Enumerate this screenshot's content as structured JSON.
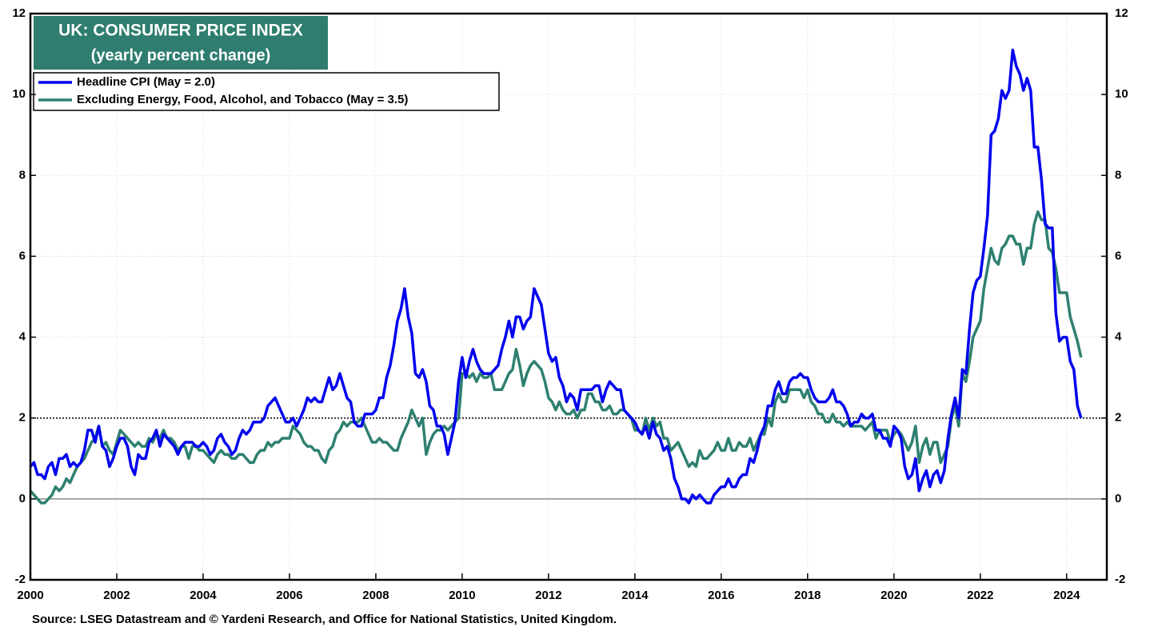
{
  "chart_data": {
    "type": "line",
    "title": "UK: CONSUMER PRICE INDEX",
    "subtitle": "(yearly percent change)",
    "source": "Source: LSEG Datastream and © Yardeni Research, and Office for National Statistics, United Kingdom.",
    "xlim": [
      2000,
      2024.93
    ],
    "xticks": [
      2000,
      2002,
      2004,
      2006,
      2008,
      2010,
      2012,
      2014,
      2016,
      2018,
      2020,
      2022,
      2024
    ],
    "ylim": [
      -2,
      12
    ],
    "yticks": [
      -2,
      0,
      2,
      4,
      6,
      8,
      10,
      12
    ],
    "y2lim": [
      -2,
      12
    ],
    "y2ticks": [
      -2,
      0,
      2,
      4,
      6,
      8,
      10,
      12
    ],
    "grid": true,
    "reference_line": 2,
    "legend": "upper-left",
    "x": [
      2000,
      2000.083,
      2000.167,
      2000.25,
      2000.333,
      2000.417,
      2000.5,
      2000.583,
      2000.667,
      2000.75,
      2000.833,
      2000.917,
      2001,
      2001.083,
      2001.167,
      2001.25,
      2001.333,
      2001.417,
      2001.5,
      2001.583,
      2001.667,
      2001.75,
      2001.833,
      2001.917,
      2002,
      2002.083,
      2002.167,
      2002.25,
      2002.333,
      2002.417,
      2002.5,
      2002.583,
      2002.667,
      2002.75,
      2002.833,
      2002.917,
      2003,
      2003.083,
      2003.167,
      2003.25,
      2003.333,
      2003.417,
      2003.5,
      2003.583,
      2003.667,
      2003.75,
      2003.833,
      2003.917,
      2004,
      2004.083,
      2004.167,
      2004.25,
      2004.333,
      2004.417,
      2004.5,
      2004.583,
      2004.667,
      2004.75,
      2004.833,
      2004.917,
      2005,
      2005.083,
      2005.167,
      2005.25,
      2005.333,
      2005.417,
      2005.5,
      2005.583,
      2005.667,
      2005.75,
      2005.833,
      2005.917,
      2006,
      2006.083,
      2006.167,
      2006.25,
      2006.333,
      2006.417,
      2006.5,
      2006.583,
      2006.667,
      2006.75,
      2006.833,
      2006.917,
      2007,
      2007.083,
      2007.167,
      2007.25,
      2007.333,
      2007.417,
      2007.5,
      2007.583,
      2007.667,
      2007.75,
      2007.833,
      2007.917,
      2008,
      2008.083,
      2008.167,
      2008.25,
      2008.333,
      2008.417,
      2008.5,
      2008.583,
      2008.667,
      2008.75,
      2008.833,
      2008.917,
      2009,
      2009.083,
      2009.167,
      2009.25,
      2009.333,
      2009.417,
      2009.5,
      2009.583,
      2009.667,
      2009.75,
      2009.833,
      2009.917,
      2010,
      2010.083,
      2010.167,
      2010.25,
      2010.333,
      2010.417,
      2010.5,
      2010.583,
      2010.667,
      2010.75,
      2010.833,
      2010.917,
      2011,
      2011.083,
      2011.167,
      2011.25,
      2011.333,
      2011.417,
      2011.5,
      2011.583,
      2011.667,
      2011.75,
      2011.833,
      2011.917,
      2012,
      2012.083,
      2012.167,
      2012.25,
      2012.333,
      2012.417,
      2012.5,
      2012.583,
      2012.667,
      2012.75,
      2012.833,
      2012.917,
      2013,
      2013.083,
      2013.167,
      2013.25,
      2013.333,
      2013.417,
      2013.5,
      2013.583,
      2013.667,
      2013.75,
      2013.833,
      2013.917,
      2014,
      2014.083,
      2014.167,
      2014.25,
      2014.333,
      2014.417,
      2014.5,
      2014.583,
      2014.667,
      2014.75,
      2014.833,
      2014.917,
      2015,
      2015.083,
      2015.167,
      2015.25,
      2015.333,
      2015.417,
      2015.5,
      2015.583,
      2015.667,
      2015.75,
      2015.833,
      2015.917,
      2016,
      2016.083,
      2016.167,
      2016.25,
      2016.333,
      2016.417,
      2016.5,
      2016.583,
      2016.667,
      2016.75,
      2016.833,
      2016.917,
      2017,
      2017.083,
      2017.167,
      2017.25,
      2017.333,
      2017.417,
      2017.5,
      2017.583,
      2017.667,
      2017.75,
      2017.833,
      2017.917,
      2018,
      2018.083,
      2018.167,
      2018.25,
      2018.333,
      2018.417,
      2018.5,
      2018.583,
      2018.667,
      2018.75,
      2018.833,
      2018.917,
      2019,
      2019.083,
      2019.167,
      2019.25,
      2019.333,
      2019.417,
      2019.5,
      2019.583,
      2019.667,
      2019.75,
      2019.833,
      2019.917,
      2020,
      2020.083,
      2020.167,
      2020.25,
      2020.333,
      2020.417,
      2020.5,
      2020.583,
      2020.667,
      2020.75,
      2020.833,
      2020.917,
      2021,
      2021.083,
      2021.167,
      2021.25,
      2021.333,
      2021.417,
      2021.5,
      2021.583,
      2021.667,
      2021.75,
      2021.833,
      2021.917,
      2022,
      2022.083,
      2022.167,
      2022.25,
      2022.333,
      2022.417,
      2022.5,
      2022.583,
      2022.667,
      2022.75,
      2022.833,
      2022.917,
      2023,
      2023.083,
      2023.167,
      2023.25,
      2023.333,
      2023.417,
      2023.5,
      2023.583,
      2023.667,
      2023.75,
      2023.833,
      2023.917,
      2024,
      2024.083,
      2024.167,
      2024.25,
      2024.333
    ],
    "series": [
      {
        "name": "Headline CPI (May = 2.0)",
        "color": "#0000ee",
        "values": [
          0.8,
          0.9,
          0.6,
          0.6,
          0.5,
          0.8,
          0.9,
          0.6,
          1.0,
          1.0,
          1.1,
          0.8,
          0.9,
          0.8,
          0.9,
          1.2,
          1.7,
          1.7,
          1.4,
          1.8,
          1.3,
          1.2,
          0.8,
          1.0,
          1.3,
          1.5,
          1.5,
          1.3,
          0.8,
          0.6,
          1.1,
          1.0,
          1.0,
          1.4,
          1.5,
          1.7,
          1.3,
          1.6,
          1.5,
          1.4,
          1.3,
          1.1,
          1.3,
          1.4,
          1.4,
          1.4,
          1.3,
          1.3,
          1.4,
          1.3,
          1.1,
          1.2,
          1.5,
          1.6,
          1.4,
          1.3,
          1.1,
          1.2,
          1.5,
          1.7,
          1.6,
          1.7,
          1.9,
          1.9,
          1.9,
          2.0,
          2.3,
          2.4,
          2.5,
          2.3,
          2.1,
          1.9,
          1.9,
          2.0,
          1.8,
          2.0,
          2.2,
          2.5,
          2.4,
          2.5,
          2.4,
          2.4,
          2.7,
          3.0,
          2.7,
          2.8,
          3.1,
          2.8,
          2.5,
          2.4,
          1.9,
          1.8,
          1.8,
          2.1,
          2.1,
          2.1,
          2.2,
          2.5,
          2.5,
          3.0,
          3.3,
          3.8,
          4.4,
          4.7,
          5.2,
          4.5,
          4.1,
          3.1,
          3.0,
          3.2,
          2.9,
          2.3,
          2.2,
          1.8,
          1.8,
          1.6,
          1.1,
          1.5,
          1.9,
          2.9,
          3.5,
          3.0,
          3.4,
          3.7,
          3.4,
          3.2,
          3.1,
          3.1,
          3.1,
          3.2,
          3.3,
          3.7,
          4.0,
          4.4,
          4.0,
          4.5,
          4.5,
          4.2,
          4.4,
          4.5,
          5.2,
          5.0,
          4.8,
          4.2,
          3.6,
          3.4,
          3.5,
          3.0,
          2.8,
          2.4,
          2.6,
          2.5,
          2.2,
          2.7,
          2.7,
          2.7,
          2.7,
          2.8,
          2.8,
          2.4,
          2.7,
          2.9,
          2.8,
          2.7,
          2.7,
          2.2,
          2.1,
          2.0,
          1.9,
          1.7,
          1.6,
          1.8,
          1.5,
          1.9,
          1.6,
          1.5,
          1.2,
          1.3,
          1.0,
          0.5,
          0.3,
          0.0,
          0.0,
          -0.1,
          0.1,
          0.0,
          0.1,
          0.0,
          -0.1,
          -0.1,
          0.1,
          0.2,
          0.3,
          0.3,
          0.5,
          0.3,
          0.3,
          0.5,
          0.6,
          0.6,
          1.0,
          0.9,
          1.2,
          1.6,
          1.8,
          2.3,
          2.3,
          2.7,
          2.9,
          2.6,
          2.6,
          2.9,
          3.0,
          3.0,
          3.1,
          3.0,
          3.0,
          2.7,
          2.5,
          2.4,
          2.4,
          2.4,
          2.5,
          2.7,
          2.4,
          2.4,
          2.3,
          2.1,
          1.8,
          1.9,
          1.9,
          2.1,
          2.0,
          2.0,
          2.1,
          1.7,
          1.7,
          1.5,
          1.5,
          1.3,
          1.8,
          1.7,
          1.5,
          0.8,
          0.5,
          0.6,
          1.0,
          0.2,
          0.5,
          0.7,
          0.3,
          0.6,
          0.7,
          0.4,
          0.7,
          1.5,
          2.1,
          2.5,
          2.0,
          3.2,
          3.1,
          4.2,
          5.1,
          5.4,
          5.5,
          6.2,
          7.0,
          9.0,
          9.1,
          9.4,
          10.1,
          9.9,
          10.1,
          11.1,
          10.7,
          10.5,
          10.1,
          10.4,
          10.1,
          8.7,
          8.7,
          7.9,
          6.8,
          6.7,
          6.7,
          4.6,
          3.9,
          4.0,
          4.0,
          3.4,
          3.2,
          2.3,
          2.0
        ]
      },
      {
        "name": "Excluding Energy, Food, Alcohol, and Tobacco (May = 3.5)",
        "color": "#2e8070",
        "values": [
          0.2,
          0.1,
          0.0,
          -0.1,
          -0.1,
          0.0,
          0.1,
          0.3,
          0.2,
          0.3,
          0.5,
          0.4,
          0.6,
          0.8,
          0.9,
          1.0,
          1.2,
          1.4,
          1.5,
          1.8,
          1.3,
          1.4,
          1.2,
          1.1,
          1.4,
          1.7,
          1.6,
          1.5,
          1.4,
          1.3,
          1.4,
          1.3,
          1.3,
          1.5,
          1.4,
          1.6,
          1.5,
          1.7,
          1.5,
          1.5,
          1.4,
          1.2,
          1.3,
          1.3,
          1.0,
          1.3,
          1.3,
          1.2,
          1.2,
          1.1,
          1.0,
          0.9,
          1.1,
          1.2,
          1.1,
          1.1,
          1.0,
          1.0,
          1.1,
          1.1,
          1.0,
          0.9,
          0.9,
          1.1,
          1.2,
          1.2,
          1.4,
          1.3,
          1.4,
          1.4,
          1.5,
          1.5,
          1.5,
          1.8,
          1.7,
          1.6,
          1.4,
          1.3,
          1.3,
          1.2,
          1.2,
          1.0,
          0.9,
          1.2,
          1.3,
          1.6,
          1.7,
          1.9,
          1.8,
          1.9,
          1.9,
          1.9,
          2.0,
          1.8,
          1.6,
          1.4,
          1.4,
          1.5,
          1.4,
          1.4,
          1.3,
          1.2,
          1.2,
          1.5,
          1.7,
          1.9,
          2.2,
          2.0,
          1.8,
          2.0,
          1.1,
          1.4,
          1.6,
          1.7,
          1.7,
          1.8,
          1.7,
          1.8,
          1.9,
          2.0,
          3.1,
          3.1,
          3.0,
          3.1,
          2.9,
          3.1,
          3.0,
          3.0,
          3.1,
          2.7,
          2.7,
          2.7,
          2.9,
          3.1,
          3.2,
          3.7,
          3.3,
          2.8,
          3.1,
          3.3,
          3.4,
          3.3,
          3.2,
          2.9,
          2.5,
          2.4,
          2.2,
          2.4,
          2.2,
          2.1,
          2.1,
          2.2,
          2.0,
          2.2,
          2.2,
          2.6,
          2.6,
          2.4,
          2.4,
          2.2,
          2.2,
          2.3,
          2.1,
          2.1,
          2.2,
          2.2,
          2.1,
          2.0,
          1.7,
          1.7,
          1.6,
          2.0,
          1.7,
          2.0,
          1.8,
          1.9,
          1.5,
          1.5,
          1.2,
          1.3,
          1.4,
          1.2,
          1.0,
          0.8,
          0.9,
          0.8,
          1.2,
          1.0,
          1.0,
          1.1,
          1.2,
          1.4,
          1.2,
          1.2,
          1.5,
          1.2,
          1.2,
          1.4,
          1.3,
          1.3,
          1.5,
          1.2,
          1.4,
          1.6,
          1.6,
          2.0,
          1.8,
          2.4,
          2.6,
          2.4,
          2.4,
          2.7,
          2.7,
          2.7,
          2.7,
          2.5,
          2.7,
          2.4,
          2.3,
          2.1,
          2.1,
          1.9,
          1.9,
          2.1,
          1.9,
          1.9,
          1.8,
          1.9,
          1.8,
          1.8,
          1.8,
          1.8,
          1.7,
          1.8,
          1.9,
          1.5,
          1.7,
          1.7,
          1.7,
          1.4,
          1.6,
          1.7,
          1.6,
          1.4,
          1.2,
          1.4,
          1.8,
          0.9,
          1.3,
          1.5,
          1.1,
          1.4,
          1.4,
          0.9,
          1.1,
          1.3,
          2.0,
          2.3,
          1.8,
          3.1,
          2.9,
          3.4,
          4.0,
          4.2,
          4.4,
          5.2,
          5.7,
          6.2,
          5.9,
          5.8,
          6.2,
          6.3,
          6.5,
          6.5,
          6.3,
          6.3,
          5.8,
          6.2,
          6.2,
          6.8,
          7.1,
          6.9,
          6.9,
          6.2,
          6.1,
          5.7,
          5.1,
          5.1,
          5.1,
          4.5,
          4.2,
          3.9,
          3.5
        ]
      }
    ]
  }
}
